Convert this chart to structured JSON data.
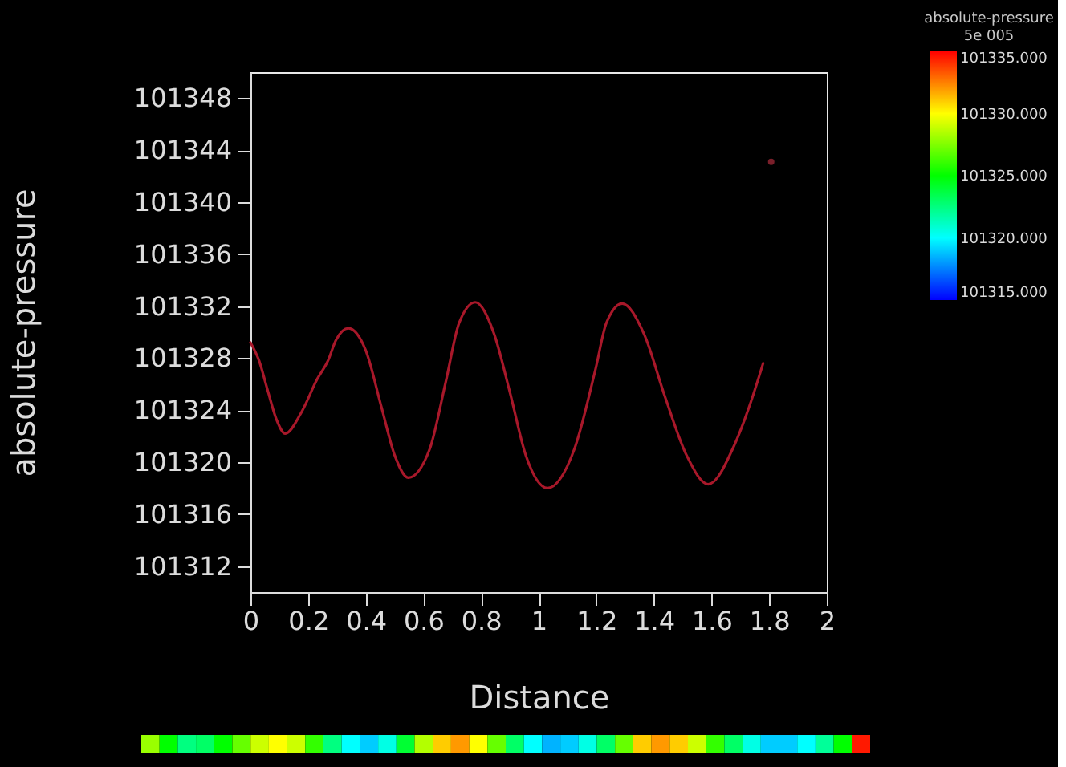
{
  "chart_data": [
    {
      "type": "line",
      "xlabel": "Distance",
      "ylabel": "absolute-pressure",
      "xlim": [
        0,
        2
      ],
      "ylim": [
        101310,
        101350
      ],
      "xticks": [
        0,
        0.2,
        0.4,
        0.6,
        0.8,
        1,
        1.2,
        1.4,
        1.6,
        1.8,
        2
      ],
      "yticks": [
        101312,
        101316,
        101320,
        101324,
        101328,
        101332,
        101336,
        101340,
        101344,
        101348
      ],
      "series": [
        {
          "type": "line",
          "color": "#a8182a",
          "x": [
            0,
            0.03,
            0.06,
            0.09,
            0.121,
            0.176,
            0.232,
            0.269,
            0.297,
            0.34,
            0.4,
            0.455,
            0.501,
            0.548,
            0.622,
            0.678,
            0.724,
            0.78,
            0.845,
            0.9,
            0.956,
            1.031,
            1.124,
            1.198,
            1.235,
            1.29,
            1.365,
            1.439,
            1.514,
            1.588,
            1.681,
            1.736,
            1.779
          ],
          "values": [
            101329.2,
            101327.8,
            101325.5,
            101323.3,
            101322.2,
            101323.8,
            101326.4,
            101327.8,
            101329.4,
            101330.3,
            101328.6,
            101324.2,
            101320.5,
            101318.8,
            101321.0,
            101326.2,
            101330.7,
            101332.3,
            101329.9,
            101325.4,
            101320.5,
            101318.0,
            101321.0,
            101327.2,
            101330.7,
            101332.2,
            101329.9,
            101325.0,
            101320.5,
            101318.3,
            101321.4,
            101324.6,
            101327.6
          ]
        },
        {
          "type": "scatter",
          "color": "#7a1f2a",
          "x": [
            1.807
          ],
          "values": [
            101343.1
          ]
        }
      ]
    },
    {
      "type": "heatmap",
      "clabel": "absolute-pressure",
      "annotations": [
        "5e 005"
      ],
      "clim": [
        101315,
        101335
      ],
      "cticks": [
        {
          "value": 101315,
          "label": "101315.000"
        },
        {
          "value": 101320,
          "label": "101320.000"
        },
        {
          "value": 101325,
          "label": "101325.000"
        },
        {
          "value": 101330,
          "label": "101330.000"
        },
        {
          "value": 101335,
          "label": "101335.000"
        }
      ],
      "categories": [
        null,
        null,
        null,
        null,
        null,
        null,
        null,
        null,
        null,
        null,
        null,
        null,
        null,
        null,
        null,
        null,
        null,
        null,
        null,
        null,
        null,
        null,
        null,
        null,
        null,
        null,
        null,
        null,
        null,
        null,
        null,
        null,
        null,
        null,
        null,
        null,
        null,
        null,
        null,
        null
      ],
      "y_categories": [
        null
      ],
      "cells": [
        [
          101328,
          101325,
          101322.5,
          101323,
          101325,
          101327,
          101329,
          101330,
          101329,
          101326,
          101322.5,
          101320,
          101319,
          101320.5,
          101324,
          101328.5,
          101331,
          101332,
          101330,
          101327,
          101323,
          101320,
          101318.5,
          101319,
          101320.5,
          101323,
          101327,
          101331,
          101332,
          101331,
          101329,
          101326,
          101323,
          101320.5,
          101319,
          101319,
          101320,
          101322,
          101325,
          101334.5
        ]
      ]
    }
  ]
}
